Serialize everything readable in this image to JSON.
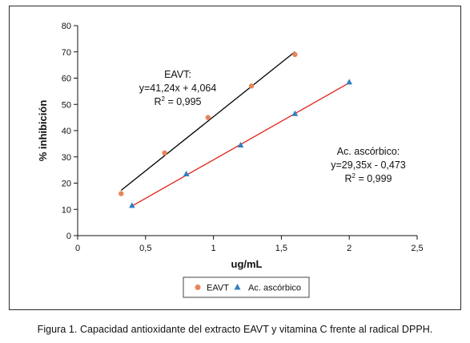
{
  "chart_data": {
    "type": "scatter",
    "xlabel": "ug/mL",
    "ylabel": "% inhibición",
    "xlim": [
      0,
      2.5
    ],
    "ylim": [
      0,
      80
    ],
    "x_ticks": [
      "0",
      "0,5",
      "1",
      "1,5",
      "2",
      "2,5"
    ],
    "y_ticks": [
      "0",
      "10",
      "20",
      "30",
      "40",
      "50",
      "60",
      "70",
      "80"
    ],
    "grid": false,
    "legend_position": "bottom",
    "series": [
      {
        "name": "EAVT",
        "marker": "circle",
        "color": "#e8855a",
        "line_color": "#000000",
        "x": [
          0.32,
          0.64,
          0.96,
          1.28,
          1.6
        ],
        "y": [
          16,
          31.5,
          45,
          57,
          69
        ],
        "fit": {
          "slope": 41.24,
          "intercept": 4.064,
          "x_range": [
            0.32,
            1.6
          ]
        },
        "annotation": [
          "EAVT:",
          "y=41,24x + 4,064",
          "R",
          "2",
          " = 0,995"
        ]
      },
      {
        "name": "Ac. ascórbico",
        "marker": "triangle",
        "color": "#2f7fc1",
        "line_color": "#e2231a",
        "x": [
          0.4,
          0.8,
          1.2,
          1.6,
          2.0
        ],
        "y": [
          11.5,
          23.5,
          34.5,
          46.5,
          58.5
        ],
        "fit": {
          "slope": 29.35,
          "intercept": -0.473,
          "x_range": [
            0.4,
            2.0
          ]
        },
        "annotation": [
          "Ac. ascórbico:",
          "y=29,35x - 0,473",
          "R",
          "2",
          " = 0,999"
        ]
      }
    ]
  },
  "caption": "Figura 1. Capacidad antioxidante del extracto EAVT y vitamina C frente al radical DPPH."
}
